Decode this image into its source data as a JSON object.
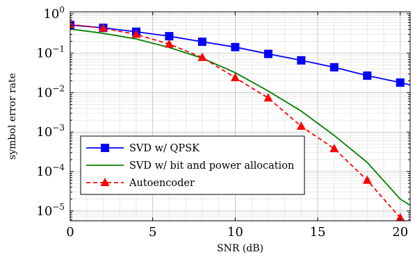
{
  "chart_data": {
    "type": "line",
    "xlabel": "SNR (dB)",
    "ylabel": "symbol error rate",
    "xlim": [
      0,
      20.6
    ],
    "ylim_log10": [
      -5.25,
      0.05
    ],
    "yscale": "log",
    "grid": true,
    "legend_position": "lower-left",
    "x_ticks": [
      {
        "value": 0,
        "label": "0"
      },
      {
        "value": 5,
        "label": "5"
      },
      {
        "value": 10,
        "label": "10"
      },
      {
        "value": 15,
        "label": "15"
      },
      {
        "value": 20,
        "label": "20"
      }
    ],
    "y_ticks": [
      {
        "exp": 0,
        "base": "10",
        "sup": "0"
      },
      {
        "exp": -1,
        "base": "10",
        "sup": "−1"
      },
      {
        "exp": -2,
        "base": "10",
        "sup": "−2"
      },
      {
        "exp": -3,
        "base": "10",
        "sup": "−3"
      },
      {
        "exp": -4,
        "base": "10",
        "sup": "−4"
      },
      {
        "exp": -5,
        "base": "10",
        "sup": "−5"
      }
    ],
    "series": [
      {
        "name": "SVD w/ QPSK",
        "color": "#0000ff",
        "dash": "",
        "marker": "square",
        "x": [
          0,
          2,
          4,
          6,
          8,
          10,
          12,
          14,
          16,
          18,
          20,
          20.6
        ],
        "y": [
          0.52,
          0.44,
          0.35,
          0.27,
          0.195,
          0.143,
          0.096,
          0.066,
          0.044,
          0.027,
          0.018,
          0.0157
        ],
        "marker_x": [
          0,
          2,
          4,
          6,
          8,
          10,
          12,
          14,
          16,
          18,
          20
        ]
      },
      {
        "name": "SVD w/ bit and power allocation",
        "color": "#008000",
        "dash": "",
        "marker": "none",
        "x": [
          0,
          2,
          4,
          6,
          8,
          10,
          12,
          14,
          16,
          18,
          20,
          20.6
        ],
        "y": [
          0.41,
          0.32,
          0.23,
          0.14,
          0.075,
          0.032,
          0.011,
          0.0034,
          0.00082,
          0.00017,
          2e-05,
          1.4e-05
        ],
        "marker_x": []
      },
      {
        "name": "Autoencoder",
        "color": "#ff0000",
        "dash": "6,4",
        "marker": "triangle",
        "x": [
          0,
          2,
          4,
          6,
          8,
          10,
          12,
          14,
          16,
          18,
          20,
          20.3
        ],
        "y": [
          0.54,
          0.43,
          0.3,
          0.17,
          0.078,
          0.024,
          0.0073,
          0.0014,
          0.00038,
          6e-05,
          6.7e-06,
          5.5e-06
        ],
        "marker_x": [
          0,
          2,
          4,
          6,
          8,
          10,
          12,
          14,
          16,
          18,
          20
        ]
      }
    ]
  }
}
